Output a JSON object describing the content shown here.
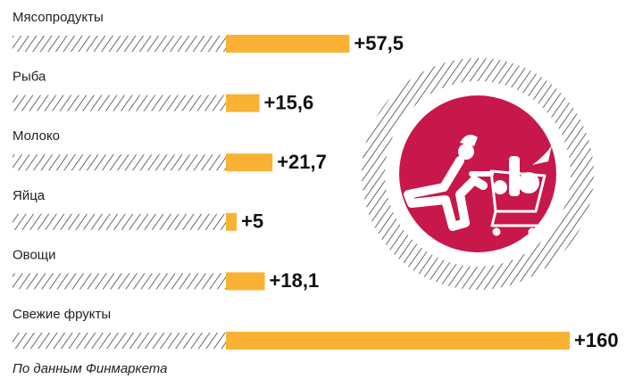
{
  "chart_data": {
    "type": "bar",
    "orientation": "horizontal",
    "categories": [
      "Мясопродукты",
      "Рыба",
      "Молоко",
      "Яйца",
      "Овощи",
      "Свежие фрукты"
    ],
    "values": [
      57.5,
      15.6,
      21.7,
      5,
      18.1,
      160
    ],
    "value_labels": [
      "+57,5",
      "+15,6",
      "+21,7",
      "+5",
      "+18,1",
      "+160"
    ],
    "color": "#f9b233",
    "source": "По данным Финмаркета"
  }
}
